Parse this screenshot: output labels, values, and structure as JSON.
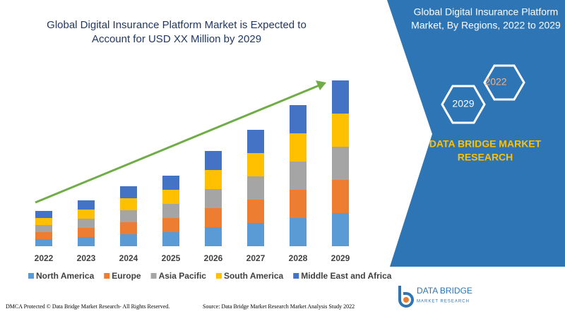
{
  "chart_data": {
    "type": "stacked_bar",
    "title_lines": [
      "Global Digital Insurance Platform Market is Expected to",
      "Account for USD XX Million by 2029"
    ],
    "categories": [
      "2022",
      "2023",
      "2024",
      "2025",
      "2026",
      "2027",
      "2028",
      "2029"
    ],
    "series": [
      {
        "name": "North America",
        "color": "#5b9bd5",
        "values": [
          10,
          13,
          17,
          20,
          27,
          33,
          40,
          47
        ]
      },
      {
        "name": "Europe",
        "color": "#ed7d31",
        "values": [
          10,
          13,
          17,
          20,
          27,
          33,
          40,
          47
        ]
      },
      {
        "name": "Asia Pacific",
        "color": "#a5a5a5",
        "values": [
          10,
          13,
          17,
          20,
          27,
          33,
          40,
          47
        ]
      },
      {
        "name": "South America",
        "color": "#ffc000",
        "values": [
          10,
          13,
          17,
          20,
          27,
          33,
          40,
          47
        ]
      },
      {
        "name": "Middle East and Africa",
        "color": "#4472c4",
        "values": [
          10,
          13,
          17,
          20,
          27,
          33,
          40,
          47
        ]
      }
    ]
  },
  "side_panel": {
    "title_lines": [
      "Global Digital Insurance Platform",
      "Market, By Regions, 2022 to 2029"
    ],
    "hex_labels": [
      "2022",
      "2029"
    ],
    "brand_lines": [
      "DATA BRIDGE MARKET",
      "RESEARCH"
    ]
  },
  "logo": {
    "name": "DATA BRIDGE",
    "tagline": "MARKET RESEARCH"
  },
  "footer": {
    "left": "DMCA Protected © Data Bridge Market Research- All Rights Reserved.",
    "right": "Source: Data Bridge Market Research Market Analysis Study 2022"
  }
}
